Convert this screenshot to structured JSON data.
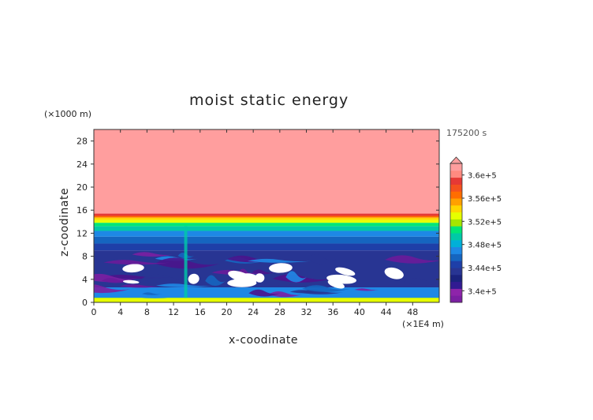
{
  "chart_data": {
    "type": "heatmap",
    "title": "moist static energy",
    "xlabel": "x-coodinate",
    "ylabel": "z-coodinate",
    "x_unit": "(×1E4 m)",
    "y_unit": "(×1000 m)",
    "time_label": "175200 s",
    "xlim": [
      0,
      52
    ],
    "ylim": [
      0,
      30
    ],
    "x_ticks": [
      "0",
      "4",
      "8",
      "12",
      "16",
      "20",
      "24",
      "28",
      "32",
      "36",
      "40",
      "44",
      "48"
    ],
    "y_ticks": [
      "0",
      "4",
      "8",
      "12",
      "16",
      "20",
      "24",
      "28"
    ],
    "colorbar": {
      "min": 338000,
      "max": 362000,
      "labels": [
        "3.4e+5",
        "3.44e+5",
        "3.48e+5",
        "3.52e+5",
        "3.56e+5",
        "3.6e+5"
      ],
      "label_values": [
        340000,
        344000,
        348000,
        352000,
        356000,
        360000
      ],
      "colors": [
        "#7b1fa2",
        "#8e24aa",
        "#311b92",
        "#1a237e",
        "#283593",
        "#1e3fa8",
        "#1565c0",
        "#1e88e5",
        "#00b0d8",
        "#00c9a7",
        "#00e676",
        "#a5e600",
        "#e6ff00",
        "#ffd600",
        "#ffa000",
        "#ff6d00",
        "#f4511e",
        "#e53935",
        "#ff8a80",
        "#ff9e9e"
      ]
    },
    "layers": [
      {
        "z_top": 30,
        "z_bottom": 15.4,
        "value": 361500
      },
      {
        "z_top": 15.4,
        "z_bottom": 15.0,
        "value": 359000
      },
      {
        "z_top": 15.0,
        "z_bottom": 14.7,
        "value": 356500
      },
      {
        "z_top": 14.7,
        "z_bottom": 14.3,
        "value": 354500
      },
      {
        "z_top": 14.3,
        "z_bottom": 13.8,
        "value": 352500
      },
      {
        "z_top": 13.8,
        "z_bottom": 13.2,
        "value": 350500
      },
      {
        "z_top": 13.2,
        "z_bottom": 12.4,
        "value": 349000
      },
      {
        "z_top": 12.4,
        "z_bottom": 11.4,
        "value": 347500
      },
      {
        "z_top": 11.4,
        "z_bottom": 10.2,
        "value": 346000
      },
      {
        "z_top": 10.2,
        "z_bottom": 9.0,
        "value": 344800
      },
      {
        "z_top": 9.0,
        "z_bottom": 2.6,
        "value": 343500
      },
      {
        "z_top": 2.6,
        "z_bottom": 0.8,
        "value": 346500
      },
      {
        "z_top": 0.8,
        "z_bottom": 0,
        "value": 352000
      }
    ]
  }
}
